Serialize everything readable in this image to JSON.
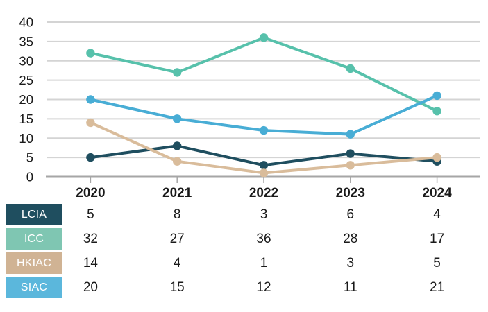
{
  "page": {
    "background": "#ffffff"
  },
  "chart_data": {
    "type": "line",
    "title": "",
    "xlabel": "",
    "ylabel": "",
    "categories": [
      "2020",
      "2021",
      "2022",
      "2023",
      "2024"
    ],
    "series": [
      {
        "name": "LCIA",
        "values": [
          5,
          8,
          3,
          6,
          4
        ],
        "line_color": "#1F4E5F",
        "label_bg": "#1F4E5F"
      },
      {
        "name": "ICC",
        "values": [
          32,
          27,
          36,
          28,
          17
        ],
        "line_color": "#57C1AB",
        "label_bg": "#7FC6B2"
      },
      {
        "name": "HKIAC",
        "values": [
          14,
          4,
          1,
          3,
          5
        ],
        "line_color": "#D9BC9B",
        "label_bg": "#D0B394"
      },
      {
        "name": "SIAC",
        "values": [
          20,
          15,
          12,
          11,
          21
        ],
        "line_color": "#48ADD5",
        "label_bg": "#5BB7DC"
      }
    ],
    "ylim": [
      0,
      40
    ],
    "yticks": [
      0,
      5,
      10,
      15,
      20,
      25,
      30,
      35,
      40
    ],
    "grid": true,
    "legend_position": "table-row-headers",
    "colors": {
      "axis_text": "#1a1a1a",
      "gridline": "#d4d4d4",
      "axis_line": "#a6a6a6",
      "legend_text": "#ffffff"
    }
  },
  "table": {
    "row_headers": [
      "LCIA",
      "ICC",
      "HKIAC",
      "SIAC"
    ],
    "columns": [
      "2020",
      "2021",
      "2022",
      "2023",
      "2024"
    ],
    "rows": [
      [
        5,
        8,
        3,
        6,
        4
      ],
      [
        32,
        27,
        36,
        28,
        17
      ],
      [
        14,
        4,
        1,
        3,
        5
      ],
      [
        20,
        15,
        12,
        11,
        21
      ]
    ]
  }
}
